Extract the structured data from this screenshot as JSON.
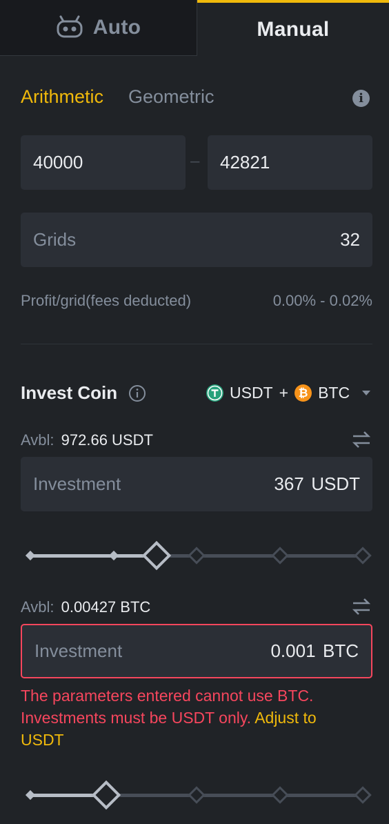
{
  "tabs": {
    "auto_label": "Auto",
    "manual_label": "Manual"
  },
  "modes": {
    "arithmetic": "Arithmetic",
    "geometric": "Geometric"
  },
  "price_range": {
    "lower": "40000",
    "separator": "–",
    "upper": "42821"
  },
  "grids": {
    "label": "Grids",
    "value": "32"
  },
  "profit": {
    "label": "Profit/grid(fees deducted)",
    "value": "0.00% - 0.02%"
  },
  "invest": {
    "title": "Invest Coin",
    "coin1": "USDT",
    "plus": "+",
    "coin2": "BTC"
  },
  "usdt": {
    "avbl_label": "Avbl:",
    "avbl_value": "972.66 USDT",
    "placeholder": "Investment",
    "amount": "367",
    "unit": "USDT",
    "slider_fraction": 0.375
  },
  "btc": {
    "avbl_label": "Avbl:",
    "avbl_value": "0.00427 BTC",
    "placeholder": "Investment",
    "amount": "0.001",
    "unit": "BTC",
    "slider_fraction": 0.23,
    "error": "The parameters entered cannot use BTC. Investments must be USDT only.",
    "error_link": "Adjust to USDT"
  },
  "colors": {
    "accent": "#f0b90b",
    "error": "#f6465d",
    "usdt": "#26a17b",
    "btc": "#f7931a"
  }
}
